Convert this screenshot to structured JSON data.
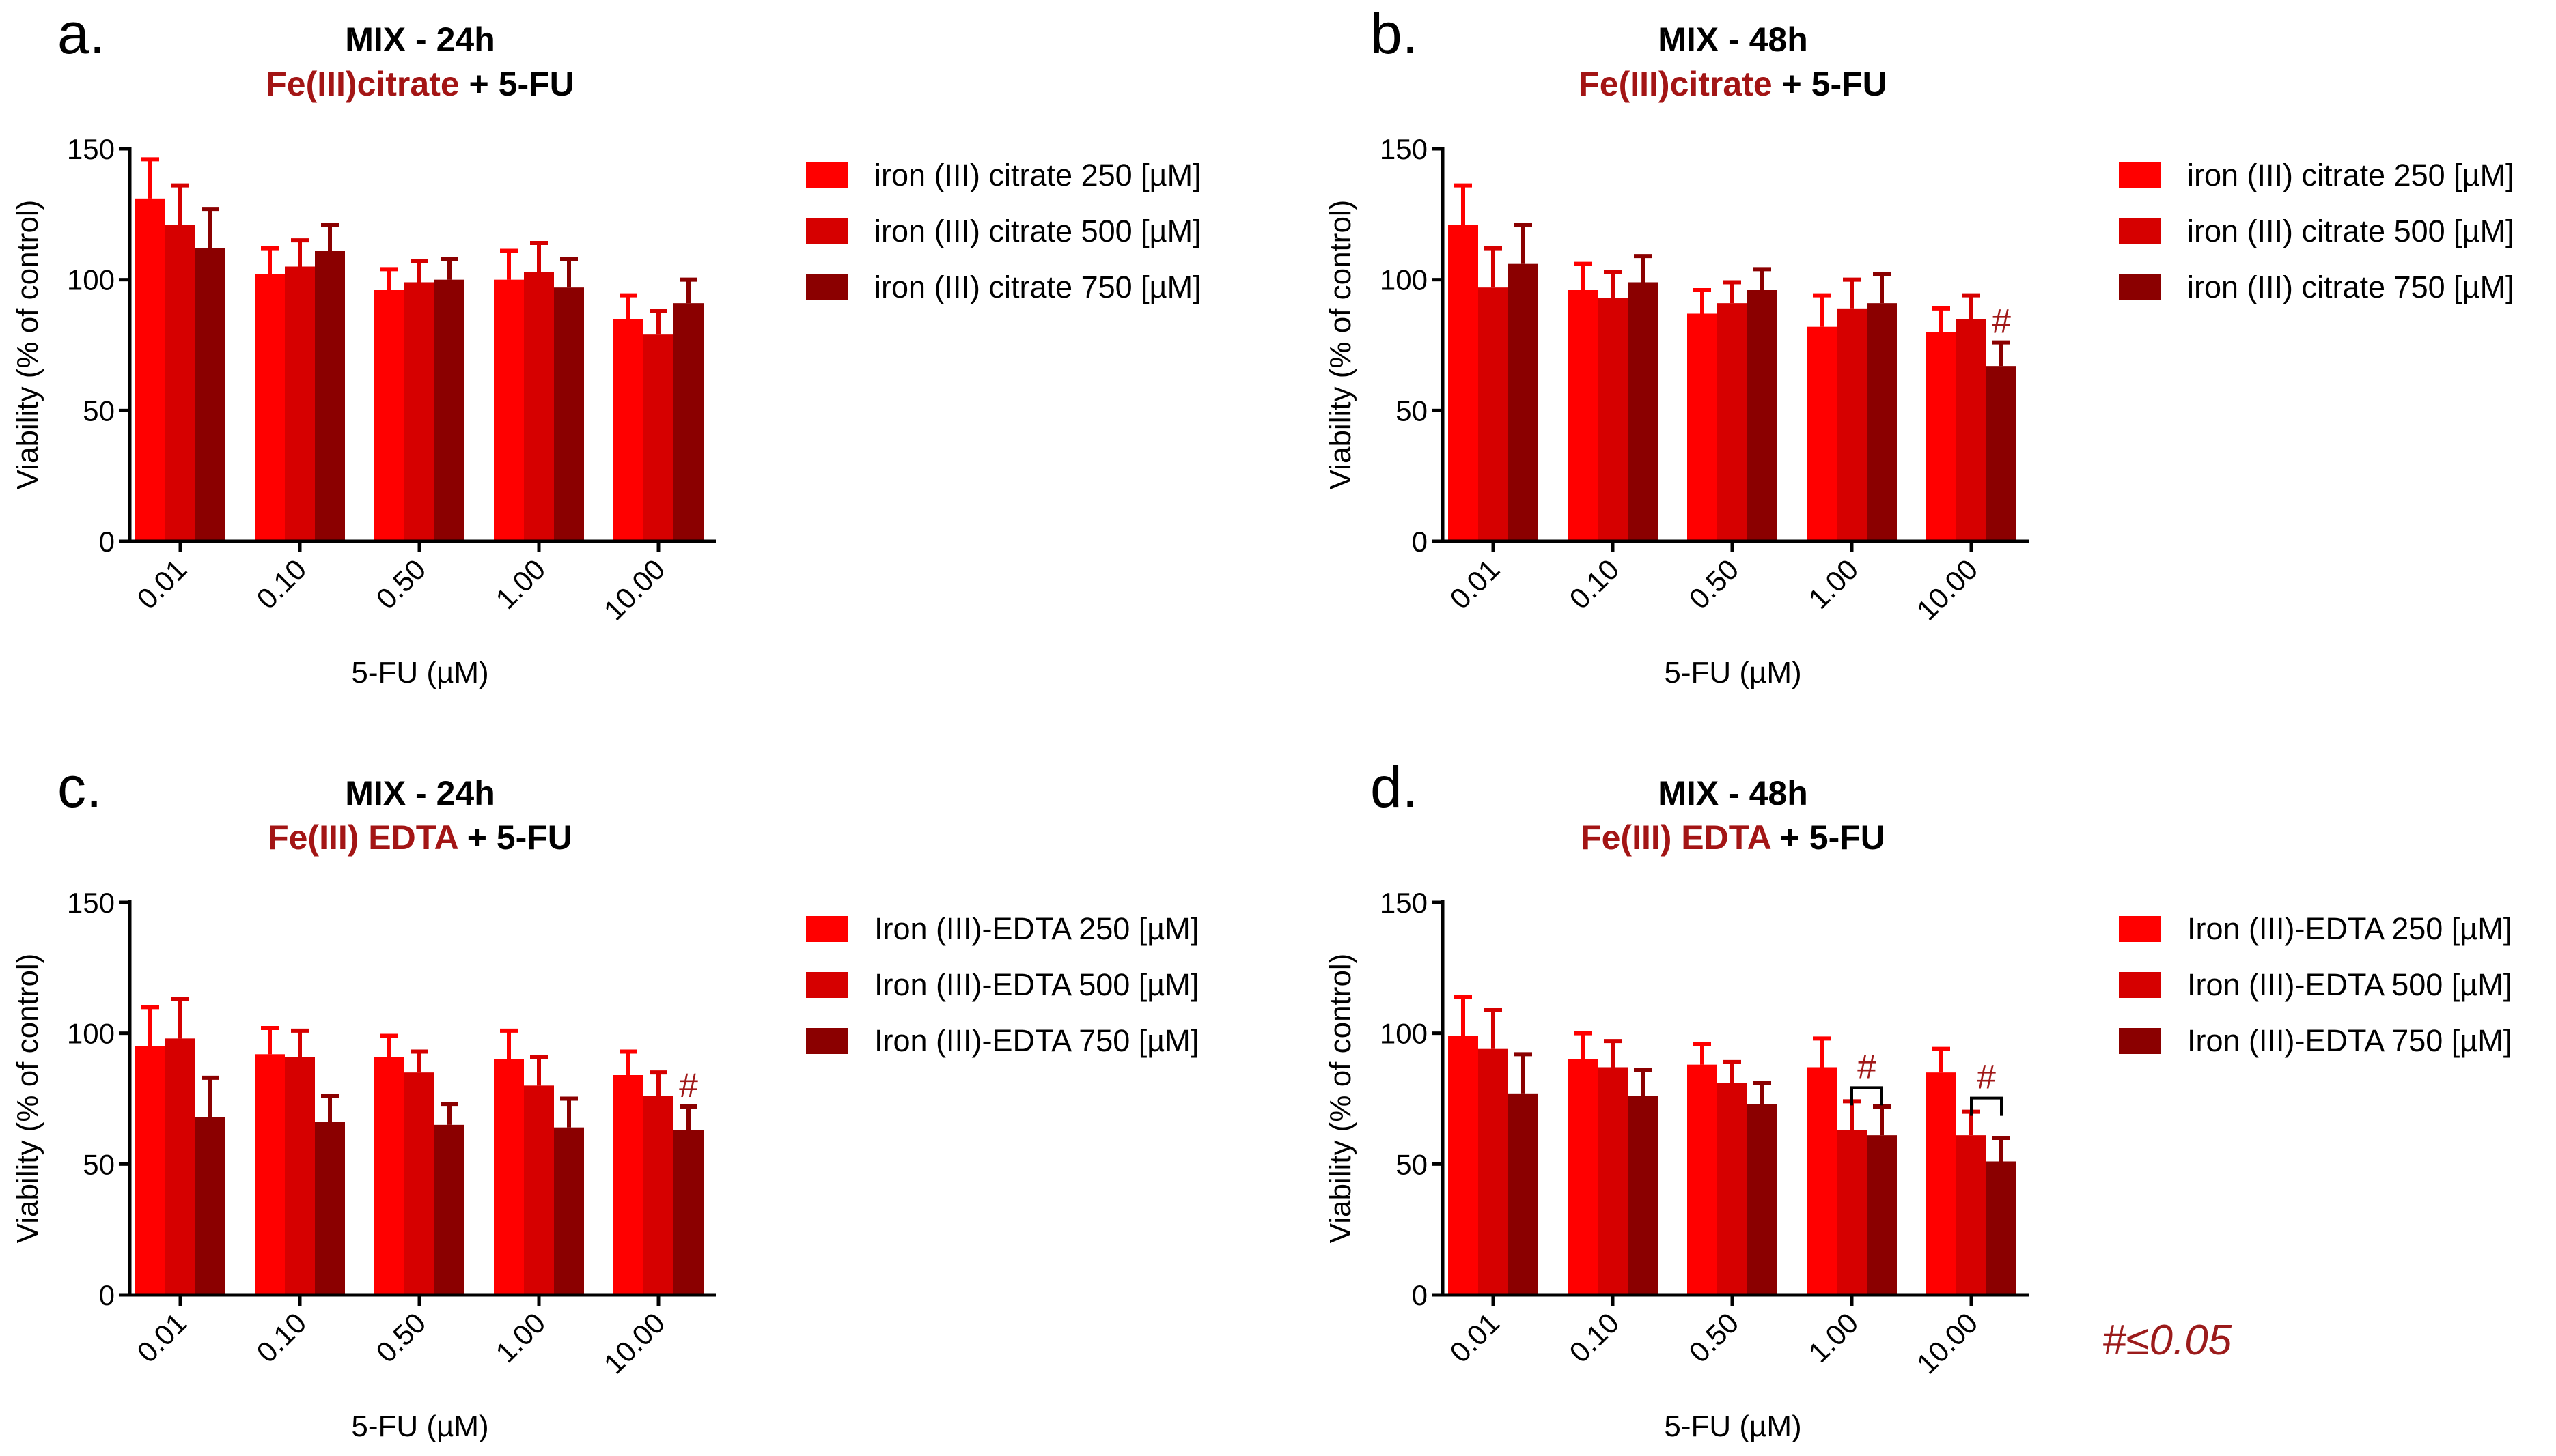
{
  "colors": {
    "series": [
      "#ff0000",
      "#d60000",
      "#8b0000"
    ],
    "title_accent": "#a31515",
    "annotation": "#a01818",
    "axis": "#000000"
  },
  "footnote": "#≤0.05",
  "chart_data": [
    {
      "panel": "a",
      "panel_label": "a.",
      "type": "bar",
      "title": "MIX - 24h",
      "subtitle_drug": "Fe(III)citrate",
      "subtitle_rest": " + 5-FU",
      "xlabel": "5-FU (µM)",
      "ylabel": "Viability (% of control)",
      "ylim": [
        0,
        150
      ],
      "yticks": [
        0,
        50,
        100,
        150
      ],
      "categories": [
        "0.01",
        "0.10",
        "0.50",
        "1.00",
        "10.00"
      ],
      "series": [
        {
          "name": "iron (III) citrate 250 [µM]",
          "values": [
            131,
            102,
            96,
            100,
            85
          ],
          "errors": [
            15,
            10,
            8,
            11,
            9
          ]
        },
        {
          "name": "iron (III) citrate 500 [µM]",
          "values": [
            121,
            105,
            99,
            103,
            79
          ],
          "errors": [
            15,
            10,
            8,
            11,
            9
          ]
        },
        {
          "name": "iron (III) citrate 750 [µM]",
          "values": [
            112,
            111,
            100,
            97,
            91
          ],
          "errors": [
            15,
            10,
            8,
            11,
            9
          ]
        }
      ],
      "annotations": []
    },
    {
      "panel": "b",
      "panel_label": "b.",
      "type": "bar",
      "title": "MIX - 48h",
      "subtitle_drug": "Fe(III)citrate",
      "subtitle_rest": " + 5-FU",
      "xlabel": "5-FU (µM)",
      "ylabel": "Viability (% of control)",
      "ylim": [
        0,
        150
      ],
      "yticks": [
        0,
        50,
        100,
        150
      ],
      "categories": [
        "0.01",
        "0.10",
        "0.50",
        "1.00",
        "10.00"
      ],
      "series": [
        {
          "name": "iron (III) citrate 250 [µM]",
          "values": [
            121,
            96,
            87,
            82,
            80
          ],
          "errors": [
            15,
            10,
            9,
            12,
            9
          ]
        },
        {
          "name": "iron (III) citrate 500 [µM]",
          "values": [
            97,
            93,
            91,
            89,
            85
          ],
          "errors": [
            15,
            10,
            8,
            11,
            9
          ]
        },
        {
          "name": "iron (III) citrate 750 [µM]",
          "values": [
            106,
            99,
            96,
            91,
            67
          ],
          "errors": [
            15,
            10,
            8,
            11,
            9
          ]
        }
      ],
      "annotations": [
        {
          "category": 4,
          "series": 2,
          "label": "#",
          "bracket": false
        }
      ]
    },
    {
      "panel": "c",
      "panel_label": "c.",
      "type": "bar",
      "title": "MIX - 24h",
      "subtitle_drug": "Fe(III)  EDTA",
      "subtitle_rest": " + 5-FU",
      "xlabel": "5-FU (µM)",
      "ylabel": "Viability (% of control)",
      "ylim": [
        0,
        150
      ],
      "yticks": [
        0,
        50,
        100,
        150
      ],
      "categories": [
        "0.01",
        "0.10",
        "0.50",
        "1.00",
        "10.00"
      ],
      "series": [
        {
          "name": "Iron (III)-EDTA  250 [µM]",
          "values": [
            95,
            92,
            91,
            90,
            84
          ],
          "errors": [
            15,
            10,
            8,
            11,
            9
          ]
        },
        {
          "name": "Iron (III)-EDTA  500 [µM]",
          "values": [
            98,
            91,
            85,
            80,
            76
          ],
          "errors": [
            15,
            10,
            8,
            11,
            9
          ]
        },
        {
          "name": "Iron (III)-EDTA 750 [µM]",
          "values": [
            68,
            66,
            65,
            64,
            63
          ],
          "errors": [
            15,
            10,
            8,
            11,
            9
          ]
        }
      ],
      "annotations": [
        {
          "category": 4,
          "series": 2,
          "label": "#",
          "bracket": false
        }
      ]
    },
    {
      "panel": "d",
      "panel_label": "d.",
      "type": "bar",
      "title": "MIX - 48h",
      "subtitle_drug": "Fe(III) EDTA",
      "subtitle_rest": " + 5-FU",
      "xlabel": "5-FU (µM)",
      "ylabel": "Viability (% of control)",
      "ylim": [
        0,
        150
      ],
      "yticks": [
        0,
        50,
        100,
        150
      ],
      "categories": [
        "0.01",
        "0.10",
        "0.50",
        "1.00",
        "10.00"
      ],
      "series": [
        {
          "name": "Iron (III)-EDTA  250 [µM]",
          "values": [
            99,
            90,
            88,
            87,
            85
          ],
          "errors": [
            15,
            10,
            8,
            11,
            9
          ]
        },
        {
          "name": "Iron (III)-EDTA  500 [µM]",
          "values": [
            94,
            87,
            81,
            63,
            61
          ],
          "errors": [
            15,
            10,
            8,
            11,
            9
          ]
        },
        {
          "name": "Iron (III)-EDTA 750 [µM]",
          "values": [
            77,
            76,
            73,
            61,
            51
          ],
          "errors": [
            15,
            10,
            8,
            11,
            9
          ]
        }
      ],
      "annotations": [
        {
          "category": 3,
          "series": 1,
          "series_end": 2,
          "label": "#",
          "bracket": true
        },
        {
          "category": 4,
          "series": 1,
          "series_end": 2,
          "label": "#",
          "bracket": true
        }
      ]
    }
  ]
}
